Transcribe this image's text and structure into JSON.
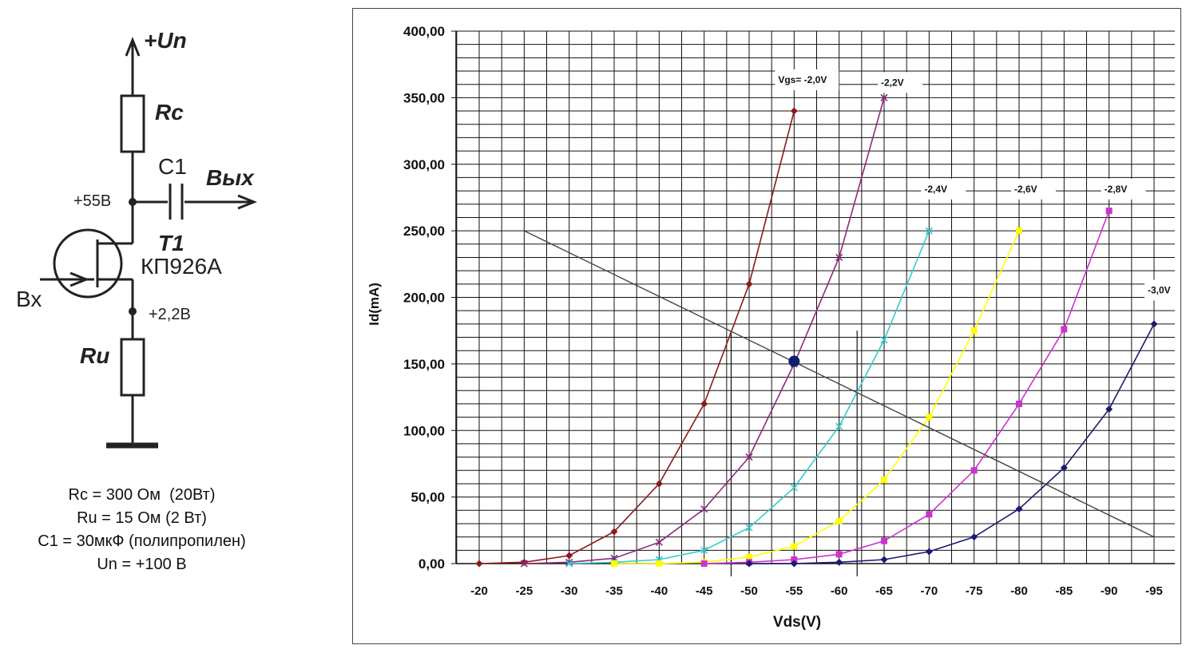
{
  "schematic": {
    "supply_label": "+Un",
    "rc_label": "Rc",
    "c1_label": "C1",
    "out_label": "Вых",
    "drain_voltage": "+55В",
    "transistor_label": "T1",
    "transistor_model": "КП926А",
    "in_label": "Вх",
    "source_voltage": "+2,2В",
    "ru_label": "Ru"
  },
  "specs": [
    "Rc = 300 Ом  (20Вт)",
    "Ru = 15 Ом (2 Вт)",
    "C1 = 30мкФ (полипропилен)",
    "Un = +100 В"
  ],
  "chart_data": {
    "type": "line",
    "xlabel": "Vds(V)",
    "ylabel": "Id(mA)",
    "x_ticks": [
      "-20",
      "-25",
      "-30",
      "-35",
      "-40",
      "-45",
      "-50",
      "-55",
      "-60",
      "-65",
      "-70",
      "-75",
      "-80",
      "-85",
      "-90",
      "-95"
    ],
    "y_ticks": [
      "0,00",
      "50,00",
      "100,00",
      "150,00",
      "200,00",
      "250,00",
      "300,00",
      "350,00",
      "400,00"
    ],
    "xlim": [
      -20,
      -95
    ],
    "ylim": [
      0,
      400
    ],
    "grid": true,
    "series": [
      {
        "name": "Vgs= -2,0V",
        "color": "#8b1a1a",
        "marker": "diamond",
        "x": [
          -20,
          -25,
          -30,
          -35,
          -40,
          -45,
          -50,
          -55
        ],
        "y": [
          0,
          1,
          6,
          24,
          60,
          120,
          210,
          340
        ]
      },
      {
        "name": "-2,2V",
        "color": "#8e2a7a",
        "marker": "x",
        "x": [
          -25,
          -30,
          -35,
          -40,
          -45,
          -50,
          -55,
          -60,
          -65
        ],
        "y": [
          0,
          1,
          4,
          16,
          41,
          80,
          150,
          230,
          350
        ]
      },
      {
        "name": "-2,4V",
        "color": "#33cccc",
        "marker": "x",
        "x": [
          -30,
          -35,
          -40,
          -45,
          -50,
          -55,
          -60,
          -65,
          -70
        ],
        "y": [
          0,
          1,
          3,
          10,
          27,
          57,
          103,
          168,
          250
        ]
      },
      {
        "name": "-2,6V",
        "color": "#ffff00",
        "marker": "square",
        "x": [
          -35,
          -40,
          -45,
          -50,
          -55,
          -60,
          -65,
          -70,
          -75,
          -80
        ],
        "y": [
          0,
          0,
          1,
          5,
          13,
          32,
          63,
          110,
          175,
          250
        ]
      },
      {
        "name": "-2,8V",
        "color": "#cc33cc",
        "marker": "square",
        "x": [
          -45,
          -50,
          -55,
          -60,
          -65,
          -70,
          -75,
          -80,
          -85,
          -90
        ],
        "y": [
          0,
          1,
          3,
          7,
          17,
          37,
          70,
          120,
          176,
          265
        ]
      },
      {
        "name": "-3,0V",
        "color": "#1a1a6e",
        "marker": "diamond",
        "x": [
          -50,
          -55,
          -60,
          -65,
          -70,
          -75,
          -80,
          -85,
          -90,
          -95
        ],
        "y": [
          0,
          0,
          1,
          3,
          9,
          20,
          41,
          72,
          116,
          180
        ]
      }
    ],
    "load_line": {
      "x": [
        -25,
        -95
      ],
      "y": [
        250,
        20
      ],
      "color": "#444444"
    },
    "operating_point": {
      "x": -55,
      "y": 152,
      "color": "#0b1f6e"
    },
    "swing_markers": {
      "x": [
        -48,
        -62
      ]
    }
  }
}
